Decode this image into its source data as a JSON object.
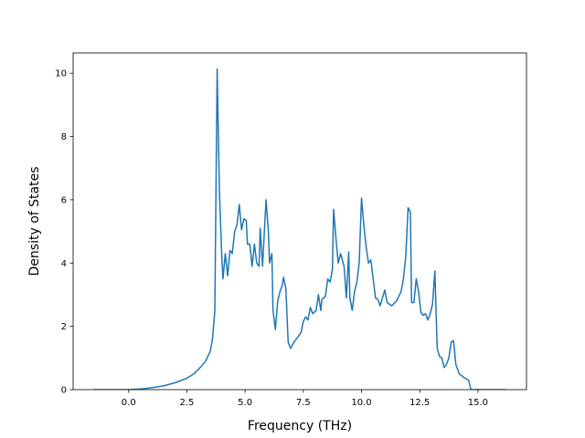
{
  "chart_data": {
    "type": "line",
    "xlabel": "Frequency (THz)",
    "ylabel": "Density of States",
    "color": "#1f77b4",
    "x": [
      -1.5,
      0,
      0.5,
      1.0,
      1.5,
      2.0,
      2.5,
      2.8,
      3.1,
      3.3,
      3.5,
      3.6,
      3.7,
      3.8,
      3.9,
      4.0,
      4.05,
      4.15,
      4.25,
      4.35,
      4.45,
      4.55,
      4.65,
      4.75,
      4.85,
      4.95,
      5.05,
      5.1,
      5.2,
      5.3,
      5.4,
      5.5,
      5.6,
      5.65,
      5.75,
      5.9,
      6.0,
      6.05,
      6.15,
      6.2,
      6.3,
      6.4,
      6.5,
      6.6,
      6.65,
      6.75,
      6.85,
      6.95,
      7.1,
      7.3,
      7.4,
      7.5,
      7.6,
      7.7,
      7.8,
      7.9,
      8.05,
      8.15,
      8.25,
      8.3,
      8.45,
      8.55,
      8.65,
      8.75,
      8.8,
      8.9,
      9.0,
      9.1,
      9.25,
      9.35,
      9.45,
      9.5,
      9.6,
      9.7,
      9.8,
      9.9,
      10.0,
      10.1,
      10.2,
      10.3,
      10.4,
      10.5,
      10.6,
      10.7,
      10.8,
      10.9,
      11.0,
      11.1,
      11.3,
      11.5,
      11.7,
      11.8,
      11.9,
      12.0,
      12.1,
      12.15,
      12.25,
      12.35,
      12.45,
      12.55,
      12.65,
      12.75,
      12.85,
      12.95,
      13.05,
      13.15,
      13.25,
      13.35,
      13.45,
      13.55,
      13.65,
      13.75,
      13.85,
      13.95,
      14.05,
      14.2,
      14.4,
      14.6,
      14.7,
      15.0,
      16.2
    ],
    "values": [
      0,
      0,
      0.02,
      0.06,
      0.12,
      0.22,
      0.36,
      0.5,
      0.72,
      0.9,
      1.2,
      1.6,
      2.5,
      10.13,
      6.2,
      4.2,
      3.5,
      4.3,
      3.6,
      4.4,
      4.3,
      5.0,
      5.2,
      5.85,
      5.05,
      5.4,
      5.35,
      4.6,
      4.6,
      3.9,
      4.6,
      4.0,
      3.9,
      5.1,
      3.9,
      6.0,
      5.0,
      4.0,
      4.3,
      2.5,
      1.9,
      2.8,
      3.1,
      3.3,
      3.55,
      3.2,
      1.5,
      1.3,
      1.5,
      1.7,
      1.8,
      2.15,
      2.3,
      2.2,
      2.6,
      2.4,
      2.5,
      3.0,
      2.5,
      2.85,
      2.95,
      3.5,
      3.4,
      3.8,
      5.7,
      4.8,
      4.0,
      4.3,
      3.9,
      2.9,
      4.35,
      2.9,
      2.5,
      3.1,
      3.4,
      4.0,
      6.05,
      5.2,
      4.5,
      4.0,
      4.1,
      3.5,
      2.9,
      2.85,
      2.65,
      2.9,
      3.15,
      2.75,
      2.65,
      2.8,
      3.1,
      3.5,
      4.2,
      5.75,
      5.6,
      2.75,
      2.75,
      3.5,
      3.1,
      2.45,
      2.35,
      2.4,
      2.2,
      2.4,
      2.7,
      3.75,
      1.3,
      1.05,
      1.0,
      0.7,
      0.8,
      1.0,
      1.5,
      1.55,
      0.8,
      0.5,
      0.38,
      0.3,
      0,
      0,
      0
    ],
    "xlim": [
      -2.385,
      17.085
    ],
    "xticks": [
      {
        "value": 0,
        "label": "0.0"
      },
      2.5,
      {
        "value": 5,
        "label": "5.0"
      },
      {
        "value": 7.5,
        "label": "7.5"
      },
      {
        "value": 10,
        "label": "10.0"
      },
      12.5,
      {
        "value": 15,
        "label": "15.0"
      }
    ],
    "ylim": [
      0,
      10.64
    ],
    "yticks": [
      0,
      2,
      4,
      6,
      8,
      10
    ]
  }
}
